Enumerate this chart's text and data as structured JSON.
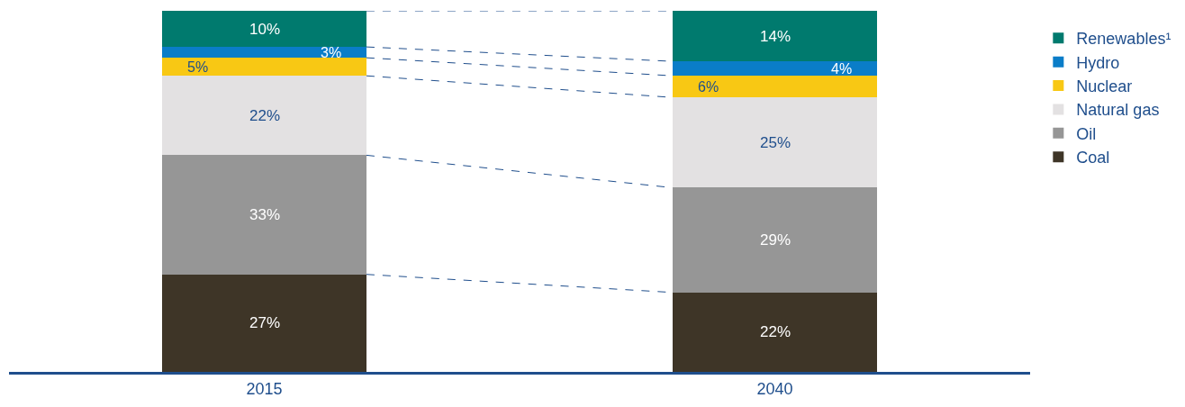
{
  "chart_data": {
    "type": "bar",
    "stacked": true,
    "categories": [
      "2015",
      "2040"
    ],
    "series": [
      {
        "name": "Coal",
        "color": "#3e3527",
        "values": [
          27,
          22
        ],
        "value_labels": [
          "27%",
          "22%"
        ]
      },
      {
        "name": "Oil",
        "color": "#969696",
        "values": [
          33,
          29
        ],
        "value_labels": [
          "33%",
          "29%"
        ]
      },
      {
        "name": "Natural gas",
        "color": "#e3e1e2",
        "values": [
          22,
          25
        ],
        "value_labels": [
          "22%",
          "25%"
        ]
      },
      {
        "name": "Nuclear",
        "color": "#f8c814",
        "values": [
          5,
          6
        ],
        "value_labels": [
          "5%",
          "6%"
        ]
      },
      {
        "name": "Hydro",
        "color": "#0a7dc8",
        "values": [
          3,
          4
        ],
        "value_labels": [
          "3%",
          "4%"
        ]
      },
      {
        "name": "Renewables¹",
        "color": "#007a6e",
        "values": [
          10,
          14
        ],
        "value_labels": [
          "10%",
          "14%"
        ]
      }
    ],
    "legend": "right",
    "tick_labels": "x"
  }
}
